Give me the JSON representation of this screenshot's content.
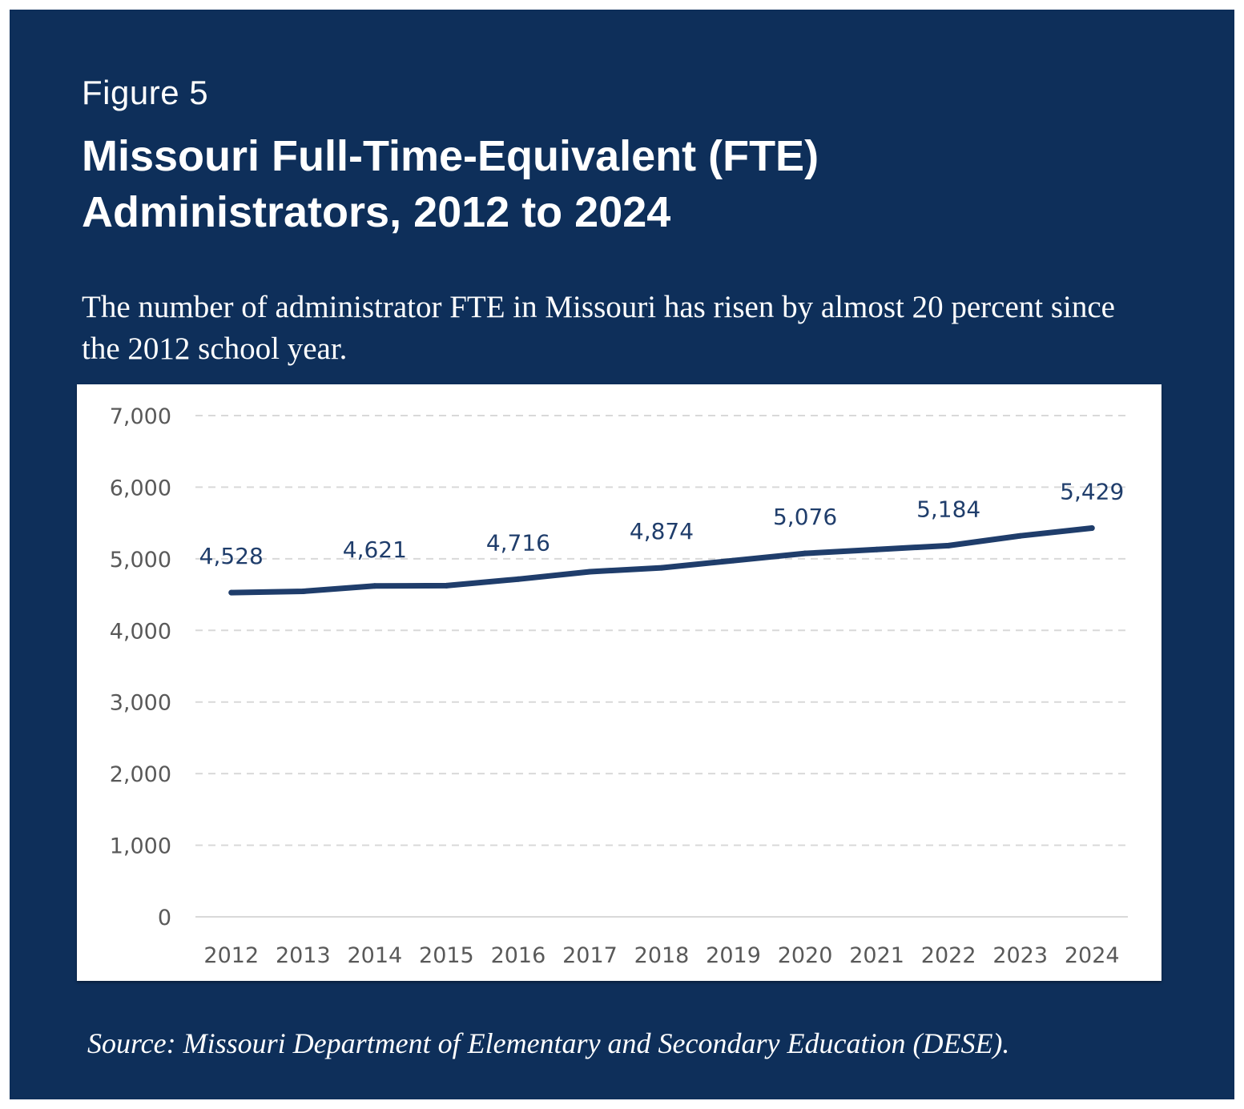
{
  "figure": {
    "label": "Figure 5",
    "title": "Missouri Full-Time-Equivalent (FTE) Administrators, 2012 to 2024",
    "subtitle": "The number of administrator FTE in Missouri has risen by almost 20 percent since the 2012 school year.",
    "source": "Source: Missouri Department of Elementary and Secondary Education (DESE)."
  },
  "colors": {
    "background": "#0e2f5a",
    "line": "#1f3d6b",
    "gridline": "#d9d9d9",
    "tick_text": "#595959"
  },
  "chart_data": {
    "type": "line",
    "title": "",
    "xlabel": "",
    "ylabel": "",
    "categories": [
      "2012",
      "2013",
      "2014",
      "2015",
      "2016",
      "2017",
      "2018",
      "2019",
      "2020",
      "2021",
      "2022",
      "2023",
      "2024"
    ],
    "series": [
      {
        "values": [
          4528,
          4545,
          4621,
          4625,
          4716,
          4820,
          4874,
          4975,
          5076,
          5130,
          5184,
          5320,
          5429
        ]
      }
    ],
    "data_labels": [
      {
        "category": "2012",
        "text": "4,528"
      },
      {
        "category": "2014",
        "text": "4,621"
      },
      {
        "category": "2016",
        "text": "4,716"
      },
      {
        "category": "2018",
        "text": "4,874"
      },
      {
        "category": "2020",
        "text": "5,076"
      },
      {
        "category": "2022",
        "text": "5,184"
      },
      {
        "category": "2024",
        "text": "5,429"
      }
    ],
    "ylim": [
      0,
      7000
    ],
    "yticks": [
      0,
      1000,
      2000,
      3000,
      4000,
      5000,
      6000,
      7000
    ],
    "ytick_labels": [
      "0",
      "1,000",
      "2,000",
      "3,000",
      "4,000",
      "5,000",
      "6,000",
      "7,000"
    ],
    "grid": true,
    "legend": "none"
  }
}
